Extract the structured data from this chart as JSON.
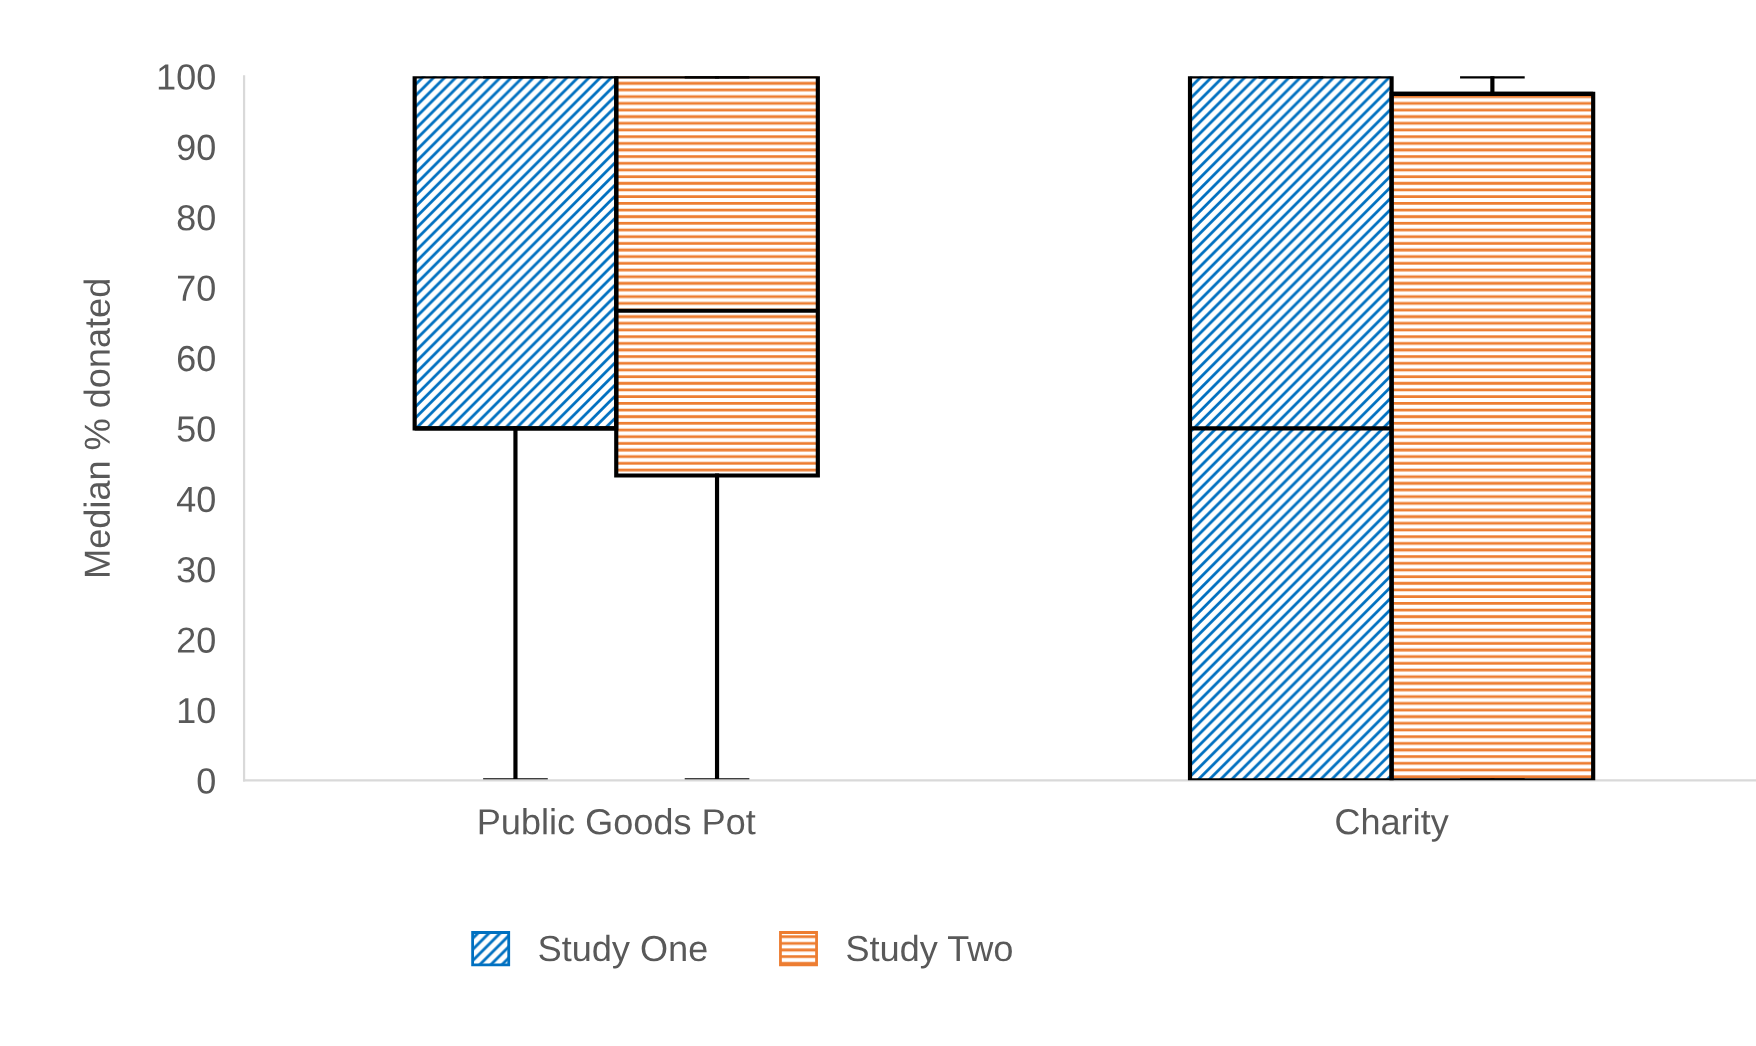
{
  "chart_data": {
    "type": "box",
    "ylabel": "Median % donated",
    "categories": [
      "Public Goods Pot",
      "Charity"
    ],
    "ylim": [
      0,
      100
    ],
    "yticks": [
      0,
      10,
      20,
      30,
      40,
      50,
      60,
      70,
      80,
      90,
      100
    ],
    "grid": false,
    "legend": "bottom",
    "series": [
      {
        "name": "Study One",
        "color": "#0070c0",
        "boxes": [
          {
            "low": 0,
            "q1": 50,
            "median": 50,
            "q3": 100,
            "high": 100
          },
          {
            "low": 0,
            "q1": 0,
            "median": 50,
            "q3": 100,
            "high": 100
          }
        ]
      },
      {
        "name": "Study Two",
        "color": "#ed7d31",
        "boxes": [
          {
            "low": 0,
            "q1": 43.3,
            "median": 66.7,
            "q3": 100,
            "high": 100
          },
          {
            "low": 0,
            "q1": 0,
            "median": 97.5,
            "q3": 97.5,
            "high": 100
          }
        ]
      }
    ]
  }
}
